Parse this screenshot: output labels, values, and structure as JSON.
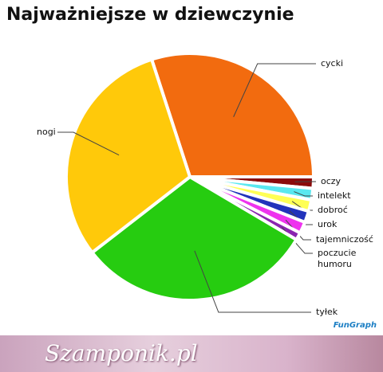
{
  "chart_data": {
    "type": "pie",
    "title": "Najważniejsze w dziewczynie",
    "categories": [
      "cycki",
      "oczy",
      "intelekt",
      "dobroć",
      "urok",
      "tajemniczość",
      "poczucie humoru",
      "tyłek",
      "nogi"
    ],
    "values": [
      30,
      1.5,
      1.5,
      1.5,
      1.5,
      1.5,
      1,
      31,
      30.5
    ],
    "colors": [
      "#f26b0f",
      "#8b0b0b",
      "#5ae8f0",
      "#ffff55",
      "#2233bb",
      "#ee33ee",
      "#8a25b0",
      "#26cc10",
      "#ffc90a"
    ]
  },
  "watermark": "FunGraph",
  "banner": "Szamponik.pl"
}
